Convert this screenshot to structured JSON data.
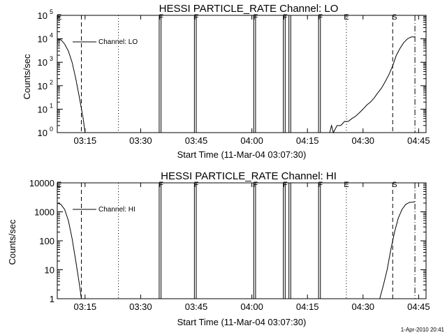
{
  "charts": {
    "lo": {
      "title": "HESSI PARTICLE_RATE Channel: LO",
      "ylabel": "Counts/sec",
      "xlabel": "Start Time (11-Mar-04 03:07:30)",
      "legend": "Channel: LO"
    },
    "hi": {
      "title": "HESSI PARTICLE_RATE Channel: HI",
      "ylabel": "Counts/sec",
      "xlabel": "Start Time (11-Mar-04 03:07:30)",
      "legend": "Channel: HI"
    }
  },
  "footer": {
    "timestamp": "1-Apr-2010 20:41"
  },
  "chart_data": [
    {
      "type": "line",
      "title": "HESSI PARTICLE_RATE Channel: LO",
      "xlabel": "Start Time (11-Mar-04 03:07:30)",
      "ylabel": "Counts/sec",
      "xlim": [
        "03:07:30",
        "04:47:00"
      ],
      "ylim": [
        1,
        100000
      ],
      "yscale": "log",
      "xticks": [
        "03:15",
        "03:30",
        "03:45",
        "04:00",
        "04:15",
        "04:30",
        "04:45"
      ],
      "yticks": [
        "10^0",
        "10^1",
        "10^2",
        "10^3",
        "10^4",
        "10^5"
      ],
      "legend_placement": "top-left",
      "flags": [
        {
          "label": "E",
          "x": "03:08:00"
        },
        {
          "label": "F",
          "x": "03:35:30"
        },
        {
          "label": "F",
          "x": "03:45:00"
        },
        {
          "label": "F",
          "x": "04:01:00"
        },
        {
          "label": "F",
          "x": "04:09:00"
        },
        {
          "label": "F",
          "x": "04:18:30"
        },
        {
          "label": "E",
          "x": "04:25:30"
        },
        {
          "label": "S",
          "x": "04:38:30"
        }
      ],
      "markers": [
        {
          "style": "dashed",
          "x": "03:14:00"
        },
        {
          "style": "dotted",
          "x": "03:24:00"
        },
        {
          "style": "dotted",
          "x": "04:25:30"
        },
        {
          "style": "dashed",
          "x": "04:38:00"
        },
        {
          "style": "dash-dot",
          "x": "04:44:00"
        }
      ],
      "fill_intervals": [
        [
          "03:35:00",
          "03:35:30"
        ],
        [
          "03:44:30",
          "03:45:00"
        ],
        [
          "04:00:30",
          "04:01:00"
        ],
        [
          "04:08:30",
          "04:09:00"
        ],
        [
          "04:10:00",
          "04:10:30"
        ],
        [
          "04:18:00",
          "04:18:30"
        ]
      ],
      "series": [
        {
          "name": "Channel: LO",
          "points": [
            [
              "03:07:30",
              10000
            ],
            [
              "03:08:30",
              9000
            ],
            [
              "03:09:30",
              6000
            ],
            [
              "03:10:30",
              3000
            ],
            [
              "03:11:30",
              1000
            ],
            [
              "03:12:30",
              200
            ],
            [
              "03:13:30",
              30
            ],
            [
              "03:14:30",
              4
            ],
            [
              "03:15:00",
              1
            ],
            [
              "03:15:30",
              1
            ],
            [
              "03:15:45",
              1
            ],
            [
              "04:21:00",
              1
            ],
            [
              "04:21:30",
              2
            ],
            [
              "04:22:00",
              1
            ],
            [
              "04:23:00",
              2
            ],
            [
              "04:24:00",
              2
            ],
            [
              "04:25:00",
              3
            ],
            [
              "04:26:00",
              3
            ],
            [
              "04:27:00",
              4
            ],
            [
              "04:28:00",
              5
            ],
            [
              "04:29:00",
              7
            ],
            [
              "04:30:00",
              10
            ],
            [
              "04:31:00",
              15
            ],
            [
              "04:32:00",
              20
            ],
            [
              "04:33:00",
              30
            ],
            [
              "04:34:00",
              50
            ],
            [
              "04:35:00",
              80
            ],
            [
              "04:36:00",
              150
            ],
            [
              "04:37:00",
              300
            ],
            [
              "04:38:00",
              700
            ],
            [
              "04:39:00",
              2000
            ],
            [
              "04:40:00",
              4000
            ],
            [
              "04:41:00",
              7000
            ],
            [
              "04:42:00",
              10000
            ],
            [
              "04:43:00",
              12000
            ],
            [
              "04:44:00",
              12000
            ]
          ]
        }
      ]
    },
    {
      "type": "line",
      "title": "HESSI PARTICLE_RATE Channel: HI",
      "xlabel": "Start Time (11-Mar-04 03:07:30)",
      "ylabel": "Counts/sec",
      "xlim": [
        "03:07:30",
        "04:47:00"
      ],
      "ylim": [
        1,
        10000
      ],
      "yscale": "log",
      "xticks": [
        "03:15",
        "03:30",
        "03:45",
        "04:00",
        "04:15",
        "04:30",
        "04:45"
      ],
      "yticks": [
        "1",
        "10",
        "100",
        "1000",
        "10000"
      ],
      "legend_placement": "top-left",
      "flags": [
        {
          "label": "E",
          "x": "03:08:00"
        },
        {
          "label": "F",
          "x": "03:35:30"
        },
        {
          "label": "F",
          "x": "03:45:00"
        },
        {
          "label": "F",
          "x": "04:01:00"
        },
        {
          "label": "F",
          "x": "04:09:00"
        },
        {
          "label": "F",
          "x": "04:18:30"
        },
        {
          "label": "E",
          "x": "04:25:30"
        },
        {
          "label": "S",
          "x": "04:38:30"
        }
      ],
      "markers": [
        {
          "style": "dashed",
          "x": "03:14:00"
        },
        {
          "style": "dotted",
          "x": "03:24:00"
        },
        {
          "style": "dotted",
          "x": "04:25:30"
        },
        {
          "style": "dashed",
          "x": "04:38:00"
        },
        {
          "style": "dash-dot",
          "x": "04:44:00"
        }
      ],
      "fill_intervals": [
        [
          "03:35:00",
          "03:35:30"
        ],
        [
          "03:44:30",
          "03:45:00"
        ],
        [
          "04:00:30",
          "04:01:00"
        ],
        [
          "04:08:30",
          "04:09:00"
        ],
        [
          "04:10:00",
          "04:10:30"
        ],
        [
          "04:18:00",
          "04:18:30"
        ]
      ],
      "series": [
        {
          "name": "Channel: HI",
          "points": [
            [
              "03:07:30",
              2000
            ],
            [
              "03:08:30",
              1800
            ],
            [
              "03:09:30",
              1200
            ],
            [
              "03:10:30",
              500
            ],
            [
              "03:11:30",
              120
            ],
            [
              "03:12:30",
              20
            ],
            [
              "03:13:30",
              3
            ],
            [
              "03:14:00",
              1
            ],
            [
              "04:34:30",
              1
            ],
            [
              "04:35:30",
              3
            ],
            [
              "04:36:30",
              10
            ],
            [
              "04:37:30",
              50
            ],
            [
              "04:38:30",
              200
            ],
            [
              "04:39:30",
              600
            ],
            [
              "04:40:30",
              1200
            ],
            [
              "04:41:30",
              1800
            ],
            [
              "04:42:30",
              2100
            ],
            [
              "04:44:00",
              2200
            ]
          ]
        }
      ]
    }
  ]
}
